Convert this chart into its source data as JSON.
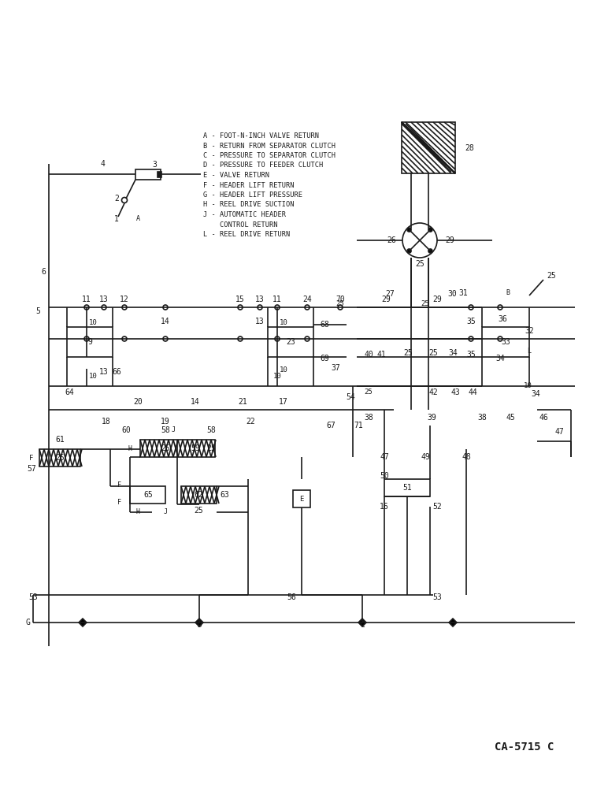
{
  "title": "CA-5715 C",
  "legend": [
    "A - FOOT-N-INCH VALVE RETURN",
    "B - RETURN FROM SEPARATOR CLUTCH",
    "C - PRESSURE TO SEPARATOR CLUTCH",
    "D - PRESSURE TO FEEDER CLUTCH",
    "E - VALVE RETURN",
    "F - HEADER LIFT RETURN",
    "G - HEADER LIFT PRESSURE",
    "H - REEL DRIVE SUCTION",
    "J - AUTOMATIC HEADER",
    "    CONTROL RETURN",
    "L - REEL DRIVE RETURN"
  ],
  "bg_color": "#ffffff",
  "line_color": "#1a1a1a",
  "line_width": 1.2
}
